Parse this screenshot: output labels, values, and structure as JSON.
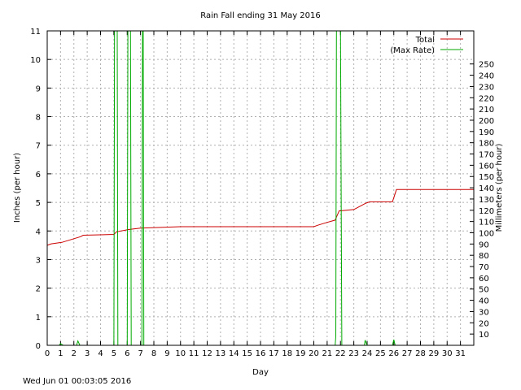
{
  "footer_timestamp": "Wed Jun 01 00:03:05 2016",
  "chart_data": {
    "type": "line",
    "title": "Rain Fall ending 31 May 2016",
    "xlabel": "Day",
    "ylabel": "Inches (per hour)",
    "y2label": "Millimeters (per hour)",
    "xlim": [
      0,
      32
    ],
    "ylim": [
      0,
      11
    ],
    "y2lim": [
      0,
      279.4
    ],
    "x_ticks": [
      0,
      1,
      2,
      3,
      4,
      5,
      6,
      7,
      8,
      9,
      10,
      11,
      12,
      13,
      14,
      15,
      16,
      17,
      18,
      19,
      20,
      21,
      22,
      23,
      24,
      25,
      26,
      27,
      28,
      29,
      30,
      31
    ],
    "y_ticks": [
      0,
      1,
      2,
      3,
      4,
      5,
      6,
      7,
      8,
      9,
      10,
      11
    ],
    "y2_ticks": [
      10,
      20,
      30,
      40,
      50,
      60,
      70,
      80,
      90,
      100,
      110,
      120,
      130,
      140,
      150,
      160,
      170,
      180,
      190,
      200,
      210,
      220,
      230,
      240,
      250
    ],
    "grid": true,
    "legend": "top-right",
    "series": [
      {
        "name": "Total",
        "color": "#cc0000",
        "points": [
          [
            0,
            3.5
          ],
          [
            0.3,
            3.55
          ],
          [
            1.1,
            3.6
          ],
          [
            1.8,
            3.7
          ],
          [
            2.5,
            3.8
          ],
          [
            2.7,
            3.85
          ],
          [
            5.0,
            3.88
          ],
          [
            5.2,
            3.97
          ],
          [
            6.1,
            4.05
          ],
          [
            7.0,
            4.1
          ],
          [
            10.0,
            4.15
          ],
          [
            20.0,
            4.15
          ],
          [
            20.3,
            4.2
          ],
          [
            21.0,
            4.3
          ],
          [
            21.6,
            4.38
          ],
          [
            21.9,
            4.7
          ],
          [
            23.0,
            4.75
          ],
          [
            23.9,
            4.97
          ],
          [
            24.2,
            5.02
          ],
          [
            25.9,
            5.02
          ],
          [
            26.2,
            5.45
          ],
          [
            32.0,
            5.45
          ]
        ]
      },
      {
        "name": "(Max Rate)",
        "color": "#00aa00",
        "points": [
          [
            0,
            0
          ],
          [
            0.9,
            0
          ],
          [
            1.0,
            0.06
          ],
          [
            1.2,
            0
          ],
          [
            2.2,
            0
          ],
          [
            2.3,
            0.15
          ],
          [
            2.45,
            0
          ],
          [
            5.0,
            0
          ],
          [
            5.05,
            11
          ],
          [
            5.25,
            11
          ],
          [
            5.3,
            0
          ],
          [
            6.0,
            0
          ],
          [
            6.05,
            11
          ],
          [
            6.25,
            11
          ],
          [
            6.3,
            0
          ],
          [
            7.1,
            0
          ],
          [
            7.15,
            11
          ],
          [
            7.2,
            11
          ],
          [
            7.25,
            0
          ],
          [
            21.6,
            0
          ],
          [
            21.65,
            0.3
          ],
          [
            21.7,
            11
          ],
          [
            22.0,
            11
          ],
          [
            22.05,
            5.3
          ],
          [
            22.1,
            0
          ],
          [
            23.8,
            0
          ],
          [
            23.85,
            0.18
          ],
          [
            24.0,
            0
          ],
          [
            25.9,
            0
          ],
          [
            26.0,
            0.2
          ],
          [
            26.1,
            0
          ],
          [
            32,
            0
          ]
        ]
      }
    ]
  }
}
